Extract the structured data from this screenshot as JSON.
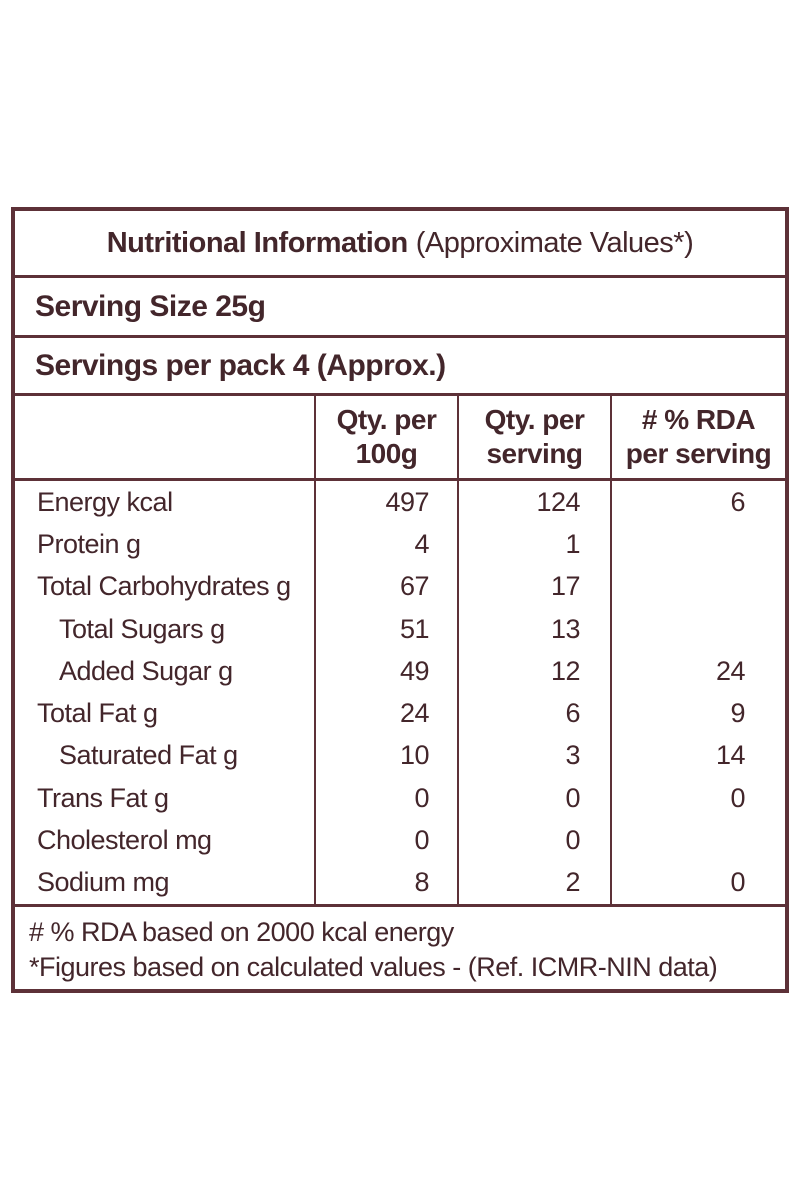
{
  "label": {
    "title_bold": "Nutritional Information",
    "title_note": "(Approximate Values*)",
    "serving_size": "Serving Size 25g",
    "servings_per_pack": "Servings per pack 4 (Approx.)",
    "columns": [
      {
        "line1": "Qty. per",
        "line2": "100g"
      },
      {
        "line1": "Qty. per",
        "line2": "serving"
      },
      {
        "line1": "# % RDA",
        "line2": "per serving"
      }
    ],
    "rows": [
      {
        "name": "Energy kcal",
        "indent": false,
        "per100": "497",
        "perServing": "124",
        "rda": "6"
      },
      {
        "name": "Protein g",
        "indent": false,
        "per100": "4",
        "perServing": "1",
        "rda": ""
      },
      {
        "name": "Total Carbohydrates g",
        "indent": false,
        "per100": "67",
        "perServing": "17",
        "rda": ""
      },
      {
        "name": "Total Sugars g",
        "indent": true,
        "per100": "51",
        "perServing": "13",
        "rda": ""
      },
      {
        "name": "Added Sugar g",
        "indent": true,
        "per100": "49",
        "perServing": "12",
        "rda": "24"
      },
      {
        "name": "Total Fat g",
        "indent": false,
        "per100": "24",
        "perServing": "6",
        "rda": "9"
      },
      {
        "name": "Saturated Fat g",
        "indent": true,
        "per100": "10",
        "perServing": "3",
        "rda": "14"
      },
      {
        "name": "Trans Fat g",
        "indent": false,
        "per100": "0",
        "perServing": "0",
        "rda": "0"
      },
      {
        "name": "Cholesterol mg",
        "indent": false,
        "per100": "0",
        "perServing": "0",
        "rda": ""
      },
      {
        "name": "Sodium mg",
        "indent": false,
        "per100": "8",
        "perServing": "2",
        "rda": "0"
      }
    ],
    "footnotes": [
      "# % RDA based on 2000 kcal energy",
      "*Figures based on calculated values - (Ref. ICMR-NIN data)"
    ],
    "colors": {
      "border": "#5d3138",
      "text": "#43262b",
      "background": "#ffffff"
    }
  }
}
